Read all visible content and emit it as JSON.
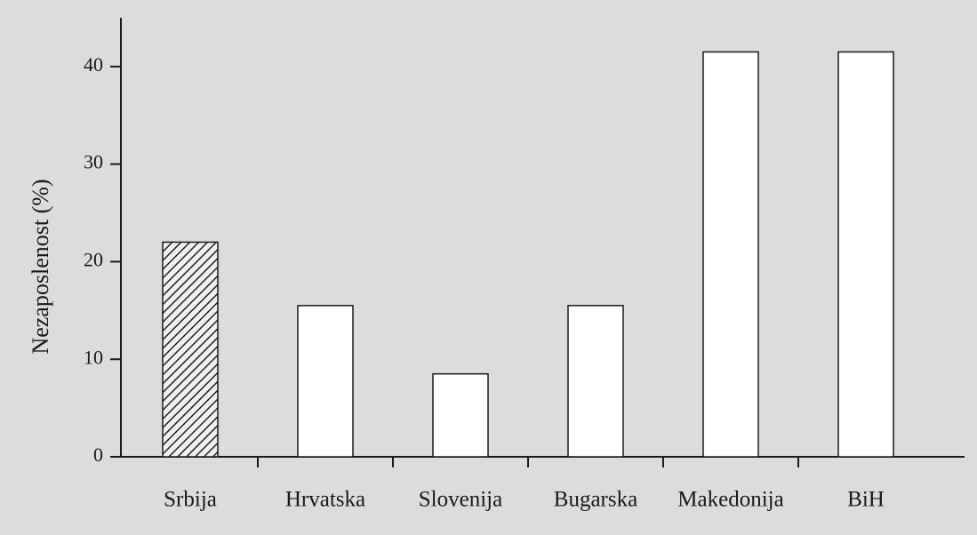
{
  "chart_data": {
    "type": "bar",
    "y_label": "Nezaposlenost (%)",
    "categories": [
      "Srbija",
      "Hrvatska",
      "Slovenija",
      "Bugarska",
      "Makedonija",
      "BiH"
    ],
    "values": [
      22,
      15.5,
      8.5,
      15.5,
      41.5,
      41.5
    ],
    "hatched": [
      true,
      false,
      false,
      false,
      false,
      false
    ],
    "color": "#ffffff",
    "ylim": [
      0,
      45
    ],
    "yticks": [
      0,
      10,
      20,
      30,
      40
    ],
    "grid": false
  }
}
